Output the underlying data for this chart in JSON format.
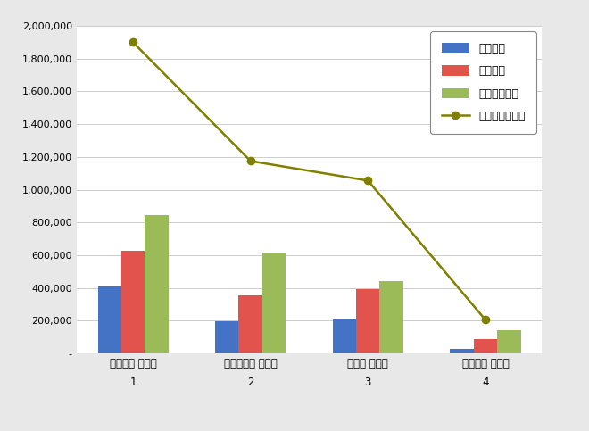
{
  "categories_line1": [
    "귀두라미 보일러",
    "경동나비엔 보일러",
    "린나이 보일러",
    "대성앗틱 보일러"
  ],
  "categories_line2": [
    "1",
    "2",
    "3",
    "4"
  ],
  "x_positions": [
    1,
    2,
    3,
    4
  ],
  "participation": [
    410000,
    195000,
    210000,
    30000
  ],
  "communication": [
    625000,
    355000,
    395000,
    85000
  ],
  "community": [
    845000,
    615000,
    440000,
    140000
  ],
  "brand_reputation": [
    1900000,
    1175000,
    1055000,
    205000
  ],
  "bar_color_blue": "#4472c4",
  "bar_color_red": "#e2534d",
  "bar_color_green": "#9bbb59",
  "line_color": "#808000",
  "legend_labels": [
    "참여지수",
    "소통지수",
    "커뮤니티지수",
    "브랜드평판지수"
  ],
  "ylim": [
    0,
    2000000
  ],
  "yticks": [
    0,
    200000,
    400000,
    600000,
    800000,
    1000000,
    1200000,
    1400000,
    1600000,
    1800000,
    2000000
  ],
  "background_color": "#e8e8e8",
  "plot_bg_color": "#ffffff",
  "bar_width": 0.2
}
